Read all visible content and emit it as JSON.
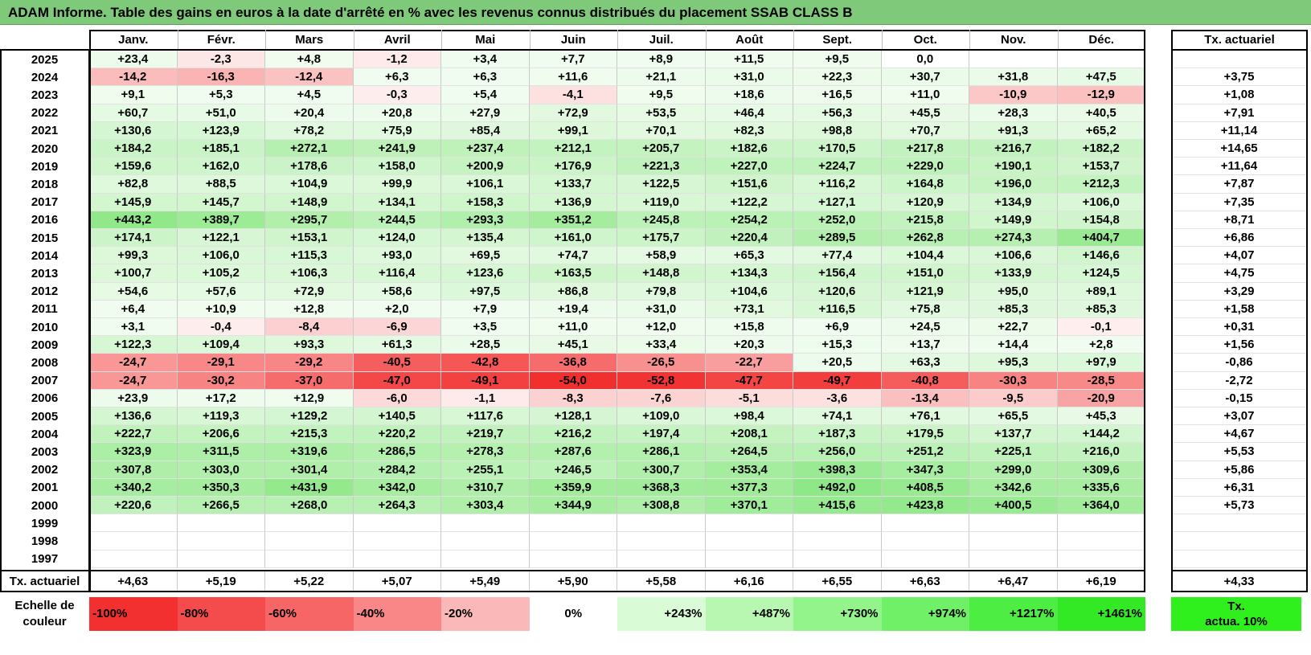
{
  "title": "ADAM Informe. Table des gains en euros à la date d'arrêté en % avec les revenus connus distribués du placement SSAB CLASS B",
  "months": [
    "Janv.",
    "Févr.",
    "Mars",
    "Avril",
    "Mai",
    "Juin",
    "Juil.",
    "Août",
    "Sept.",
    "Oct.",
    "Nov.",
    "Déc."
  ],
  "rate_header": "Tx. actuariel",
  "rows": [
    {
      "year": "2025",
      "values": [
        "+23,4",
        "-2,3",
        "+4,8",
        "-1,2",
        "+3,4",
        "+7,7",
        "+8,9",
        "+11,5",
        "+9,5",
        "0,0",
        "",
        ""
      ],
      "rate": ""
    },
    {
      "year": "2024",
      "values": [
        "-14,2",
        "-16,3",
        "-12,4",
        "+6,3",
        "+6,3",
        "+11,6",
        "+21,1",
        "+31,0",
        "+22,3",
        "+30,7",
        "+31,8",
        "+47,5"
      ],
      "rate": "+3,75"
    },
    {
      "year": "2023",
      "values": [
        "+9,1",
        "+5,3",
        "+4,5",
        "-0,3",
        "+5,4",
        "-4,1",
        "+9,5",
        "+18,6",
        "+16,5",
        "+11,0",
        "-10,9",
        "-12,9"
      ],
      "rate": "+1,08"
    },
    {
      "year": "2022",
      "values": [
        "+60,7",
        "+51,0",
        "+20,4",
        "+20,8",
        "+27,9",
        "+72,9",
        "+53,5",
        "+46,4",
        "+56,3",
        "+45,5",
        "+28,3",
        "+40,5"
      ],
      "rate": "+7,91"
    },
    {
      "year": "2021",
      "values": [
        "+130,6",
        "+123,9",
        "+78,2",
        "+75,9",
        "+85,4",
        "+99,1",
        "+70,1",
        "+82,3",
        "+98,8",
        "+70,7",
        "+91,3",
        "+65,2"
      ],
      "rate": "+11,14"
    },
    {
      "year": "2020",
      "values": [
        "+184,2",
        "+185,1",
        "+272,1",
        "+241,9",
        "+237,4",
        "+212,1",
        "+205,7",
        "+182,6",
        "+170,5",
        "+217,8",
        "+216,7",
        "+182,2"
      ],
      "rate": "+14,65"
    },
    {
      "year": "2019",
      "values": [
        "+159,6",
        "+162,0",
        "+178,6",
        "+158,0",
        "+200,9",
        "+176,9",
        "+221,3",
        "+227,0",
        "+224,7",
        "+229,0",
        "+190,1",
        "+153,7"
      ],
      "rate": "+11,64"
    },
    {
      "year": "2018",
      "values": [
        "+82,8",
        "+88,5",
        "+104,9",
        "+99,9",
        "+106,1",
        "+133,7",
        "+122,5",
        "+151,6",
        "+116,2",
        "+164,8",
        "+196,0",
        "+212,3"
      ],
      "rate": "+7,87"
    },
    {
      "year": "2017",
      "values": [
        "+145,9",
        "+145,7",
        "+148,9",
        "+134,1",
        "+158,3",
        "+136,9",
        "+119,0",
        "+122,2",
        "+127,1",
        "+120,9",
        "+134,9",
        "+106,0"
      ],
      "rate": "+7,35"
    },
    {
      "year": "2016",
      "values": [
        "+443,2",
        "+389,7",
        "+295,7",
        "+244,5",
        "+293,3",
        "+351,2",
        "+245,8",
        "+254,2",
        "+252,0",
        "+215,8",
        "+149,9",
        "+154,8"
      ],
      "rate": "+8,71"
    },
    {
      "year": "2015",
      "values": [
        "+174,1",
        "+122,1",
        "+153,1",
        "+124,0",
        "+135,4",
        "+161,0",
        "+175,7",
        "+220,4",
        "+289,5",
        "+262,8",
        "+274,3",
        "+404,7"
      ],
      "rate": "+6,86"
    },
    {
      "year": "2014",
      "values": [
        "+99,3",
        "+106,0",
        "+115,3",
        "+93,0",
        "+69,5",
        "+74,7",
        "+58,9",
        "+65,3",
        "+77,4",
        "+104,4",
        "+106,6",
        "+146,6"
      ],
      "rate": "+4,07"
    },
    {
      "year": "2013",
      "values": [
        "+100,7",
        "+105,2",
        "+106,3",
        "+116,4",
        "+123,6",
        "+163,5",
        "+148,8",
        "+134,3",
        "+156,4",
        "+151,0",
        "+133,9",
        "+124,5"
      ],
      "rate": "+4,75"
    },
    {
      "year": "2012",
      "values": [
        "+54,6",
        "+57,6",
        "+72,9",
        "+58,6",
        "+97,5",
        "+86,8",
        "+79,8",
        "+104,6",
        "+120,6",
        "+121,9",
        "+95,0",
        "+89,1"
      ],
      "rate": "+3,29"
    },
    {
      "year": "2011",
      "values": [
        "+6,4",
        "+10,9",
        "+12,8",
        "+2,0",
        "+7,9",
        "+19,4",
        "+31,0",
        "+73,1",
        "+116,5",
        "+75,8",
        "+85,3",
        "+85,3"
      ],
      "rate": "+1,58"
    },
    {
      "year": "2010",
      "values": [
        "+3,1",
        "-0,4",
        "-8,4",
        "-6,9",
        "+3,5",
        "+11,0",
        "+12,0",
        "+15,8",
        "+6,9",
        "+24,5",
        "+22,7",
        "-0,1"
      ],
      "rate": "+0,31"
    },
    {
      "year": "2009",
      "values": [
        "+122,3",
        "+109,4",
        "+93,3",
        "+61,3",
        "+28,5",
        "+45,1",
        "+33,4",
        "+20,3",
        "+15,3",
        "+13,7",
        "+14,4",
        "+2,8"
      ],
      "rate": "+1,56"
    },
    {
      "year": "2008",
      "values": [
        "-24,7",
        "-29,1",
        "-29,2",
        "-40,5",
        "-42,8",
        "-36,8",
        "-26,5",
        "-22,7",
        "+20,5",
        "+63,3",
        "+95,3",
        "+97,9"
      ],
      "rate": "-0,86"
    },
    {
      "year": "2007",
      "values": [
        "-24,7",
        "-30,2",
        "-37,0",
        "-47,0",
        "-49,1",
        "-54,0",
        "-52,8",
        "-47,7",
        "-49,7",
        "-40,8",
        "-30,3",
        "-28,5"
      ],
      "rate": "-2,72"
    },
    {
      "year": "2006",
      "values": [
        "+23,9",
        "+17,2",
        "+12,9",
        "-6,0",
        "-1,1",
        "-8,3",
        "-7,6",
        "-5,1",
        "-3,6",
        "-13,4",
        "-9,5",
        "-20,9"
      ],
      "rate": "-0,15"
    },
    {
      "year": "2005",
      "values": [
        "+136,6",
        "+119,3",
        "+129,2",
        "+140,5",
        "+117,6",
        "+128,1",
        "+109,0",
        "+98,4",
        "+74,1",
        "+76,1",
        "+65,5",
        "+45,3"
      ],
      "rate": "+3,07"
    },
    {
      "year": "2004",
      "values": [
        "+222,7",
        "+206,6",
        "+215,3",
        "+220,2",
        "+219,7",
        "+216,2",
        "+197,4",
        "+208,1",
        "+187,3",
        "+179,5",
        "+137,7",
        "+144,2"
      ],
      "rate": "+4,67"
    },
    {
      "year": "2003",
      "values": [
        "+323,9",
        "+311,5",
        "+319,6",
        "+286,5",
        "+278,3",
        "+287,6",
        "+286,1",
        "+264,5",
        "+256,0",
        "+251,2",
        "+225,1",
        "+216,0"
      ],
      "rate": "+5,53"
    },
    {
      "year": "2002",
      "values": [
        "+307,8",
        "+303,0",
        "+301,4",
        "+284,2",
        "+255,1",
        "+246,5",
        "+300,7",
        "+353,4",
        "+398,3",
        "+347,3",
        "+299,0",
        "+309,6"
      ],
      "rate": "+5,86"
    },
    {
      "year": "2001",
      "values": [
        "+340,2",
        "+350,3",
        "+431,9",
        "+342,0",
        "+310,7",
        "+359,9",
        "+368,3",
        "+377,3",
        "+492,0",
        "+408,5",
        "+342,6",
        "+335,6"
      ],
      "rate": "+6,31"
    },
    {
      "year": "2000",
      "values": [
        "+220,6",
        "+266,5",
        "+268,0",
        "+264,3",
        "+303,4",
        "+344,9",
        "+308,8",
        "+370,1",
        "+415,6",
        "+423,8",
        "+400,5",
        "+364,0"
      ],
      "rate": "+5,73"
    },
    {
      "year": "1999",
      "values": [
        "",
        "",
        "",
        "",
        "",
        "",
        "",
        "",
        "",
        "",
        "",
        ""
      ],
      "rate": ""
    },
    {
      "year": "1998",
      "values": [
        "",
        "",
        "",
        "",
        "",
        "",
        "",
        "",
        "",
        "",
        "",
        ""
      ],
      "rate": ""
    },
    {
      "year": "1997",
      "values": [
        "",
        "",
        "",
        "",
        "",
        "",
        "",
        "",
        "",
        "",
        "",
        ""
      ],
      "rate": ""
    }
  ],
  "actuarial_row": {
    "label": "Tx. actuariel",
    "values": [
      "+4,63",
      "+5,19",
      "+5,22",
      "+5,07",
      "+5,49",
      "+5,90",
      "+5,58",
      "+6,16",
      "+6,55",
      "+6,63",
      "+6,47",
      "+6,19"
    ],
    "rate": "+4,33"
  },
  "scale": {
    "label_line1": "Echelle de",
    "label_line2": "couleur",
    "steps": [
      "-100%",
      "-80%",
      "-60%",
      "-40%",
      "-20%",
      "0%",
      "+243%",
      "+487%",
      "+730%",
      "+974%",
      "+1217%",
      "+1461%"
    ],
    "colors": [
      "#f2302f",
      "#f44c4c",
      "#f66666",
      "#f98787",
      "#fbb8b8",
      "#ffffff",
      "#d9fbd6",
      "#b7f7b1",
      "#92f48a",
      "#6ff066",
      "#4ded43",
      "#33e926"
    ],
    "legend_line1": "Tx.",
    "legend_line2": "actua. 10%",
    "legend_color": "#2ff01c"
  },
  "heat_colors": {
    "neg_max": "#f22b2b",
    "pos_max": "#8fe887"
  }
}
